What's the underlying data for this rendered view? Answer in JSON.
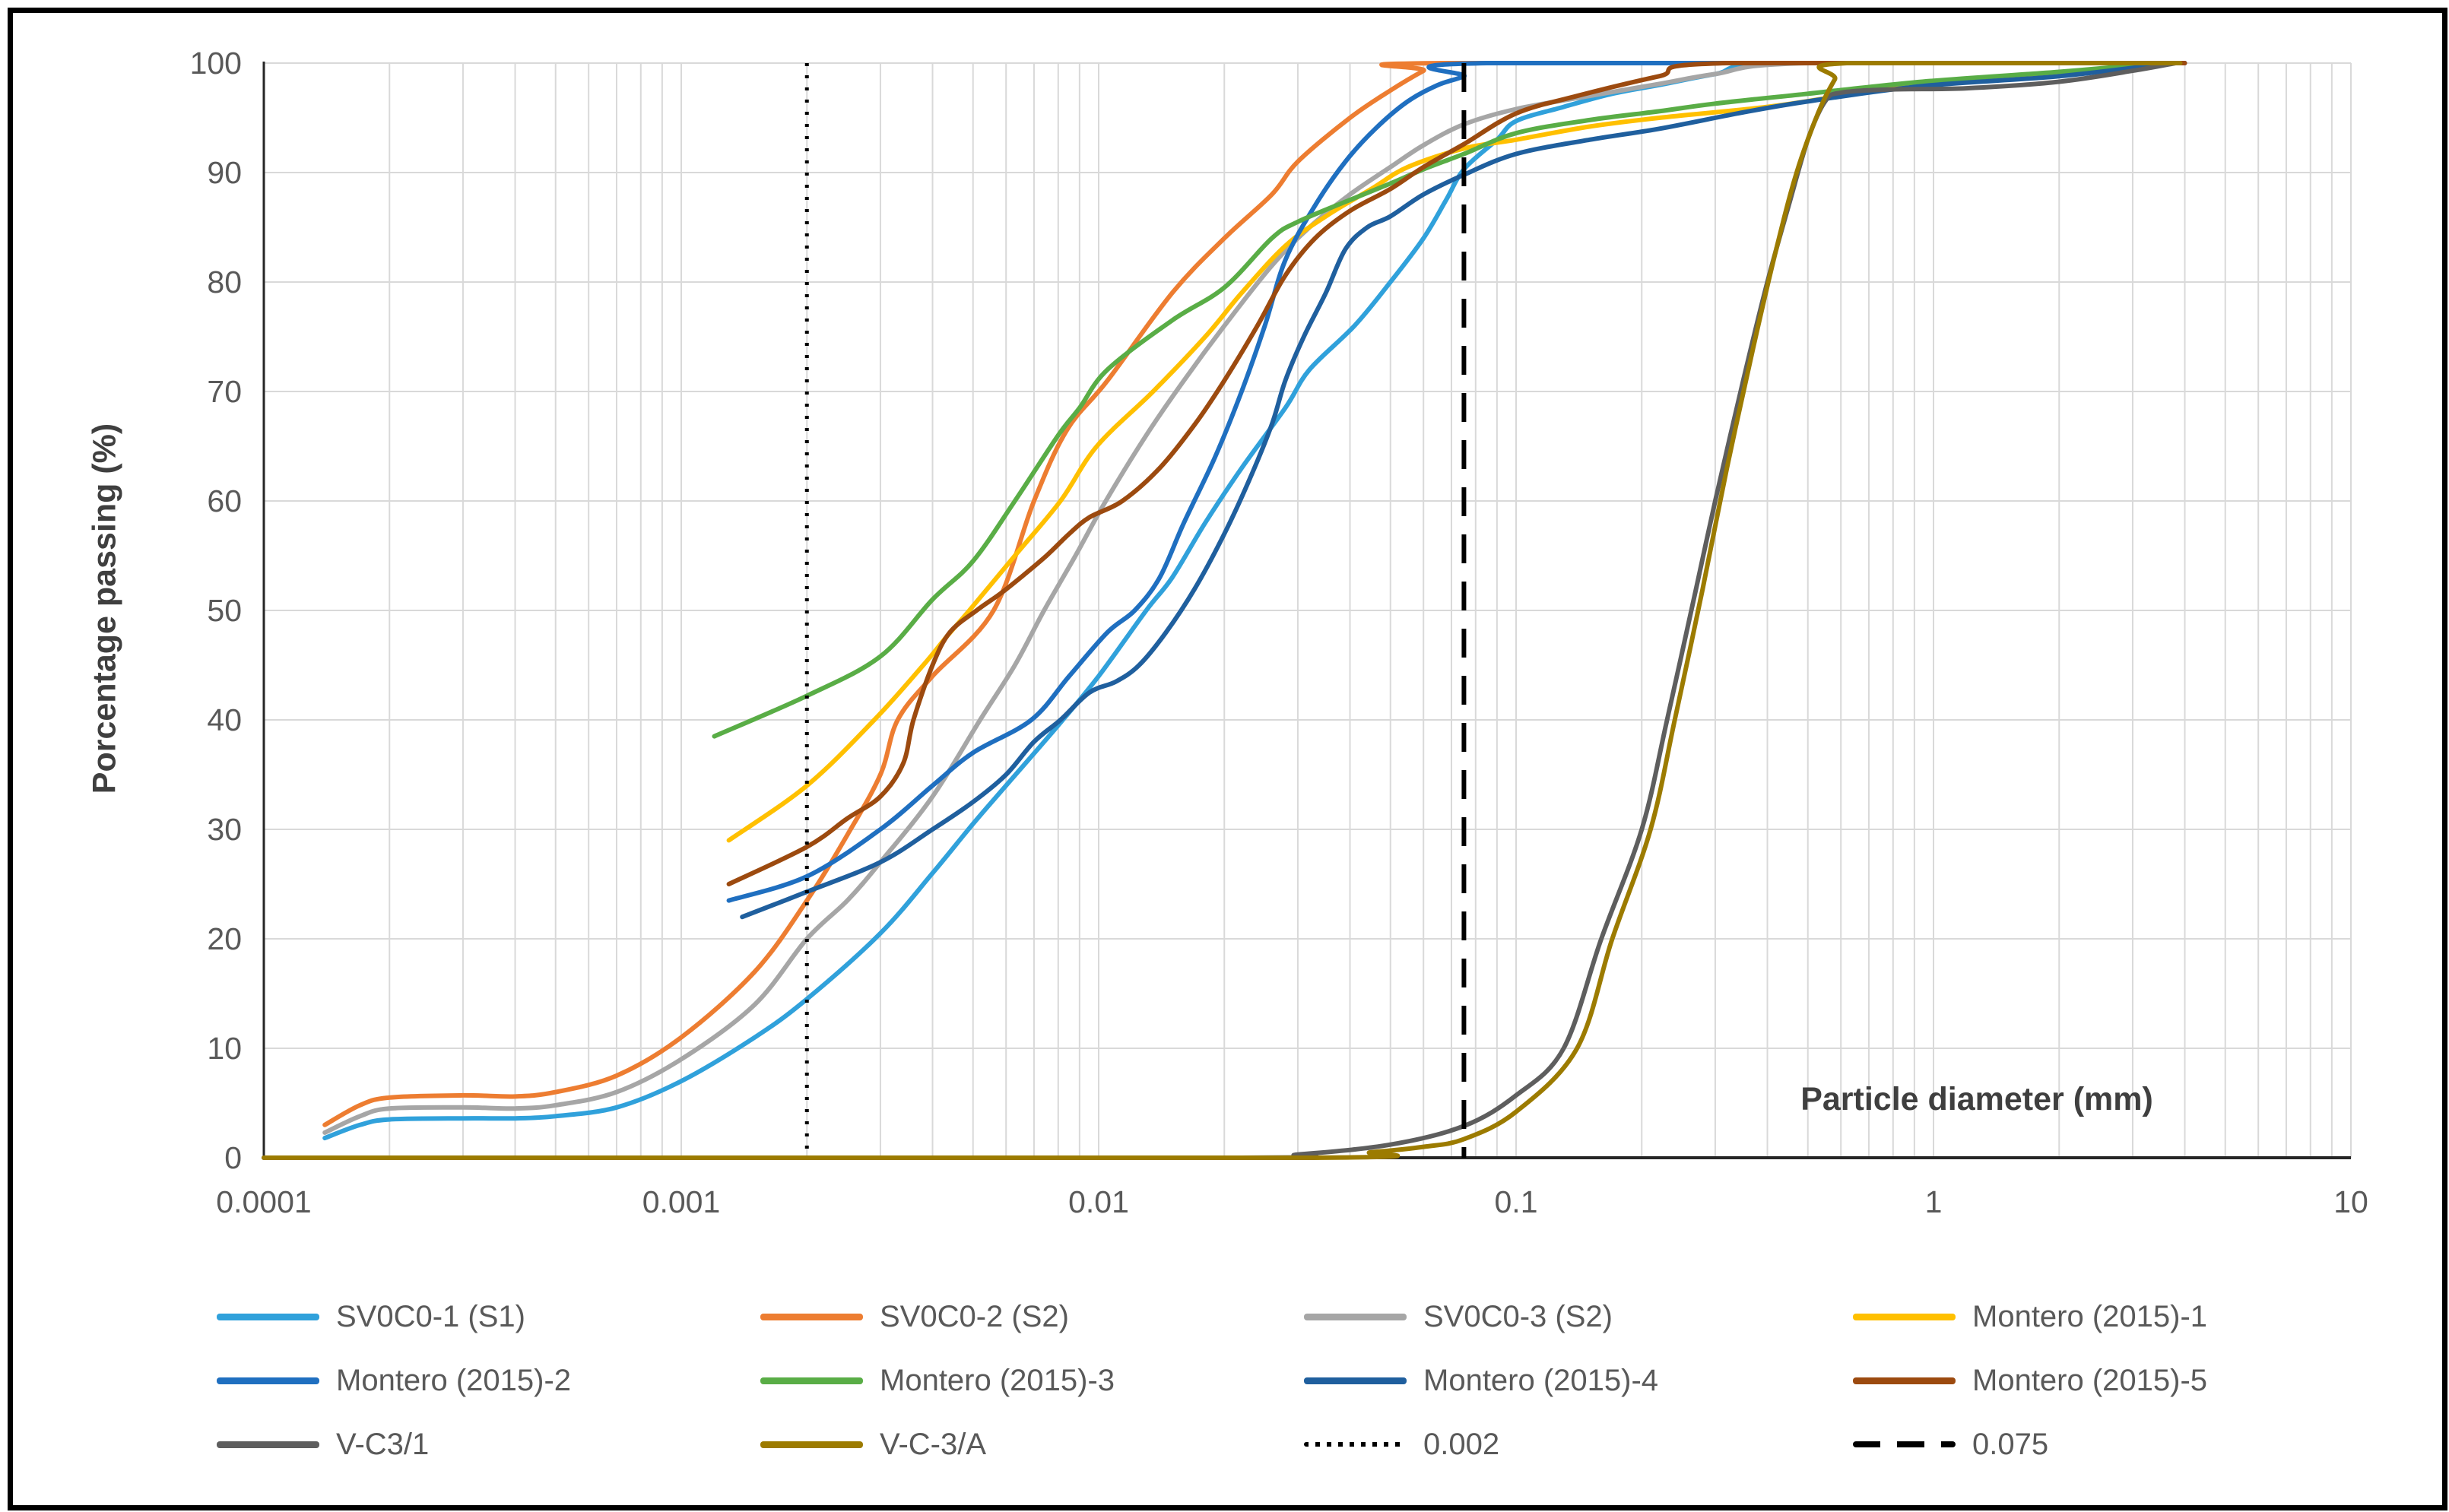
{
  "chart_data": {
    "type": "line",
    "title": "",
    "xlabel": "Particle diameter (mm)",
    "ylabel": "Porcentage passing (%)",
    "x_scale": "log",
    "xlim": [
      0.0001,
      10
    ],
    "ylim": [
      0,
      100
    ],
    "grid": true,
    "legend_position": "bottom",
    "x_ticks": [
      "0.0001",
      "0.001",
      "0.01",
      "0.1",
      "1",
      "10"
    ],
    "y_ticks": [
      "0",
      "10",
      "20",
      "30",
      "40",
      "50",
      "60",
      "70",
      "80",
      "90",
      "100"
    ],
    "series": [
      {
        "name": "SV0C0-1 (S1)",
        "color": "#30A1DB",
        "dash": "solid",
        "points": [
          [
            0.00014,
            1.8
          ],
          [
            0.00017,
            3.0
          ],
          [
            0.0002,
            3.5
          ],
          [
            0.0003,
            3.6
          ],
          [
            0.0004,
            3.6
          ],
          [
            0.0005,
            3.8
          ],
          [
            0.0007,
            4.6
          ],
          [
            0.001,
            7.0
          ],
          [
            0.0015,
            11.0
          ],
          [
            0.002,
            14.5
          ],
          [
            0.003,
            20.5
          ],
          [
            0.004,
            26.0
          ],
          [
            0.005,
            30.5
          ],
          [
            0.006,
            34.0
          ],
          [
            0.008,
            39.5
          ],
          [
            0.01,
            44.0
          ],
          [
            0.013,
            50.0
          ],
          [
            0.015,
            53.0
          ],
          [
            0.018,
            58.0
          ],
          [
            0.022,
            63.0
          ],
          [
            0.028,
            68.5
          ],
          [
            0.032,
            72.0
          ],
          [
            0.041,
            76.0
          ],
          [
            0.05,
            80.0
          ],
          [
            0.06,
            84.0
          ],
          [
            0.068,
            87.5
          ],
          [
            0.075,
            90.3
          ],
          [
            0.09,
            93.0
          ],
          [
            0.1,
            94.7
          ],
          [
            0.13,
            96.0
          ],
          [
            0.17,
            97.2
          ],
          [
            0.22,
            98.0
          ],
          [
            0.3,
            99.0
          ],
          [
            0.45,
            100
          ],
          [
            4,
            100
          ]
        ]
      },
      {
        "name": "SV0C0-2 (S2)",
        "color": "#ED7D31",
        "dash": "solid",
        "points": [
          [
            0.00014,
            3.0
          ],
          [
            0.00017,
            4.8
          ],
          [
            0.0002,
            5.5
          ],
          [
            0.0003,
            5.7
          ],
          [
            0.0004,
            5.6
          ],
          [
            0.0005,
            6.0
          ],
          [
            0.0007,
            7.5
          ],
          [
            0.001,
            11.0
          ],
          [
            0.0015,
            17.0
          ],
          [
            0.002,
            23.5
          ],
          [
            0.0025,
            29.5
          ],
          [
            0.003,
            35.0
          ],
          [
            0.0033,
            40.0
          ],
          [
            0.004,
            44.0
          ],
          [
            0.0056,
            50.0
          ],
          [
            0.007,
            60.0
          ],
          [
            0.0084,
            66.5
          ],
          [
            0.0105,
            71.0
          ],
          [
            0.015,
            79.0
          ],
          [
            0.02,
            84.0
          ],
          [
            0.026,
            88.0
          ],
          [
            0.03,
            91.0
          ],
          [
            0.04,
            95.0
          ],
          [
            0.05,
            97.5
          ],
          [
            0.06,
            99.3
          ],
          [
            0.066,
            100
          ],
          [
            4,
            100
          ]
        ]
      },
      {
        "name": "SV0C0-3 (S2)",
        "color": "#A6A6A6",
        "dash": "solid",
        "points": [
          [
            0.00014,
            2.3
          ],
          [
            0.00017,
            3.8
          ],
          [
            0.0002,
            4.5
          ],
          [
            0.0003,
            4.6
          ],
          [
            0.0004,
            4.5
          ],
          [
            0.0005,
            4.8
          ],
          [
            0.0007,
            6.0
          ],
          [
            0.001,
            9.0
          ],
          [
            0.0015,
            14.0
          ],
          [
            0.002,
            20.0
          ],
          [
            0.0025,
            23.5
          ],
          [
            0.003,
            27.0
          ],
          [
            0.004,
            33.0
          ],
          [
            0.0052,
            40.0
          ],
          [
            0.0063,
            45.0
          ],
          [
            0.0074,
            50.0
          ],
          [
            0.0088,
            55.0
          ],
          [
            0.0104,
            60.0
          ],
          [
            0.013,
            66.0
          ],
          [
            0.016,
            71.0
          ],
          [
            0.02,
            76.0
          ],
          [
            0.026,
            81.5
          ],
          [
            0.032,
            85.0
          ],
          [
            0.04,
            88.0
          ],
          [
            0.05,
            90.5
          ],
          [
            0.06,
            92.5
          ],
          [
            0.075,
            94.4
          ],
          [
            0.1,
            95.8
          ],
          [
            0.15,
            97.0
          ],
          [
            0.22,
            98.1
          ],
          [
            0.3,
            99.0
          ],
          [
            0.5,
            100
          ],
          [
            4,
            100
          ]
        ]
      },
      {
        "name": "Montero (2015)-1",
        "color": "#FFC000",
        "dash": "solid",
        "points": [
          [
            0.0013,
            29.0
          ],
          [
            0.002,
            34.0
          ],
          [
            0.0029,
            40.0
          ],
          [
            0.0038,
            45.0
          ],
          [
            0.0043,
            47.5
          ],
          [
            0.0049,
            50.0
          ],
          [
            0.0063,
            55.0
          ],
          [
            0.0081,
            60.0
          ],
          [
            0.0099,
            65.0
          ],
          [
            0.0135,
            70.0
          ],
          [
            0.018,
            75.0
          ],
          [
            0.022,
            79.0
          ],
          [
            0.028,
            83.3
          ],
          [
            0.035,
            86.0
          ],
          [
            0.045,
            88.5
          ],
          [
            0.055,
            90.5
          ],
          [
            0.075,
            92.2
          ],
          [
            0.1,
            93.0
          ],
          [
            0.15,
            94.2
          ],
          [
            0.22,
            95.0
          ],
          [
            0.4,
            96.0
          ],
          [
            0.6,
            97.0
          ],
          [
            0.94,
            98.1
          ],
          [
            2,
            99.0
          ],
          [
            3.6,
            100
          ]
        ]
      },
      {
        "name": "Montero (2015)-2",
        "color": "#1F6FC0",
        "dash": "solid",
        "points": [
          [
            0.0013,
            23.5
          ],
          [
            0.002,
            25.7
          ],
          [
            0.003,
            30.0
          ],
          [
            0.004,
            34.0
          ],
          [
            0.005,
            37.0
          ],
          [
            0.0069,
            40.0
          ],
          [
            0.0085,
            44.0
          ],
          [
            0.0105,
            48.0
          ],
          [
            0.0122,
            50.0
          ],
          [
            0.014,
            53.0
          ],
          [
            0.016,
            58.0
          ],
          [
            0.019,
            64.0
          ],
          [
            0.022,
            70.0
          ],
          [
            0.025,
            76.0
          ],
          [
            0.028,
            82.0
          ],
          [
            0.033,
            87.0
          ],
          [
            0.039,
            91.0
          ],
          [
            0.046,
            94.0
          ],
          [
            0.055,
            96.5
          ],
          [
            0.065,
            98.0
          ],
          [
            0.075,
            98.8
          ],
          [
            0.085,
            100
          ],
          [
            4,
            100
          ]
        ]
      },
      {
        "name": "Montero (2015)-3",
        "color": "#59AD46",
        "dash": "solid",
        "points": [
          [
            0.0012,
            38.5
          ],
          [
            0.002,
            42.2
          ],
          [
            0.003,
            45.8
          ],
          [
            0.004,
            51.0
          ],
          [
            0.005,
            54.5
          ],
          [
            0.0063,
            60.0
          ],
          [
            0.008,
            66.0
          ],
          [
            0.009,
            68.5
          ],
          [
            0.0105,
            72.0
          ],
          [
            0.015,
            76.5
          ],
          [
            0.02,
            79.5
          ],
          [
            0.026,
            84.0
          ],
          [
            0.03,
            85.5
          ],
          [
            0.04,
            87.5
          ],
          [
            0.05,
            89.0
          ],
          [
            0.06,
            90.3
          ],
          [
            0.075,
            91.7
          ],
          [
            0.1,
            93.6
          ],
          [
            0.15,
            94.8
          ],
          [
            0.22,
            95.6
          ],
          [
            0.3,
            96.3
          ],
          [
            0.5,
            97.2
          ],
          [
            0.94,
            98.3
          ],
          [
            2,
            99.2
          ],
          [
            3.5,
            100
          ]
        ]
      },
      {
        "name": "Montero (2015)-4",
        "color": "#1F5F9E",
        "dash": "solid",
        "points": [
          [
            0.0014,
            22.0
          ],
          [
            0.002,
            24.3
          ],
          [
            0.003,
            27.0
          ],
          [
            0.004,
            30.0
          ],
          [
            0.005,
            32.5
          ],
          [
            0.006,
            35.0
          ],
          [
            0.007,
            38.0
          ],
          [
            0.0081,
            40.0
          ],
          [
            0.0095,
            42.5
          ],
          [
            0.011,
            43.5
          ],
          [
            0.0125,
            45.0
          ],
          [
            0.0145,
            48.0
          ],
          [
            0.017,
            52.0
          ],
          [
            0.02,
            57.0
          ],
          [
            0.023,
            62.0
          ],
          [
            0.026,
            67.0
          ],
          [
            0.028,
            71.0
          ],
          [
            0.031,
            75.0
          ],
          [
            0.035,
            79.0
          ],
          [
            0.039,
            83.0
          ],
          [
            0.044,
            85.0
          ],
          [
            0.05,
            86.0
          ],
          [
            0.06,
            88.0
          ],
          [
            0.075,
            89.8
          ],
          [
            0.1,
            91.7
          ],
          [
            0.15,
            93.0
          ],
          [
            0.22,
            94.0
          ],
          [
            0.35,
            95.5
          ],
          [
            0.5,
            96.5
          ],
          [
            0.94,
            97.9
          ],
          [
            2,
            98.8
          ],
          [
            3.7,
            100
          ]
        ]
      },
      {
        "name": "Montero (2015)-5",
        "color": "#9C4A0F",
        "dash": "solid",
        "points": [
          [
            0.0013,
            25.0
          ],
          [
            0.002,
            28.4
          ],
          [
            0.0025,
            31.0
          ],
          [
            0.003,
            33.0
          ],
          [
            0.0034,
            36.0
          ],
          [
            0.0036,
            40.0
          ],
          [
            0.004,
            45.0
          ],
          [
            0.0044,
            48.0
          ],
          [
            0.0051,
            50.0
          ],
          [
            0.0058,
            51.5
          ],
          [
            0.0065,
            53.0
          ],
          [
            0.0075,
            55.0
          ],
          [
            0.0085,
            57.0
          ],
          [
            0.0095,
            58.5
          ],
          [
            0.0114,
            60.0
          ],
          [
            0.014,
            63.0
          ],
          [
            0.017,
            67.0
          ],
          [
            0.02,
            71.0
          ],
          [
            0.024,
            76.0
          ],
          [
            0.028,
            80.6
          ],
          [
            0.033,
            84.0
          ],
          [
            0.04,
            86.5
          ],
          [
            0.05,
            88.5
          ],
          [
            0.06,
            90.5
          ],
          [
            0.075,
            92.6
          ],
          [
            0.1,
            95.4
          ],
          [
            0.14,
            97.0
          ],
          [
            0.22,
            98.8
          ],
          [
            0.32,
            100
          ],
          [
            4,
            100
          ]
        ]
      },
      {
        "name": "V-C3/1",
        "color": "#5E5E5E",
        "dash": "solid",
        "points": [
          [
            0.0001,
            0
          ],
          [
            0.02,
            0
          ],
          [
            0.03,
            0.3
          ],
          [
            0.05,
            1.2
          ],
          [
            0.075,
            2.9
          ],
          [
            0.1,
            5.7
          ],
          [
            0.13,
            10.0
          ],
          [
            0.16,
            20.0
          ],
          [
            0.2,
            30.0
          ],
          [
            0.23,
            40.0
          ],
          [
            0.27,
            52.0
          ],
          [
            0.3,
            60.0
          ],
          [
            0.35,
            71.0
          ],
          [
            0.4,
            80.0
          ],
          [
            0.45,
            87.0
          ],
          [
            0.5,
            93.0
          ],
          [
            0.55,
            96.5
          ],
          [
            0.6,
            97.3
          ],
          [
            0.8,
            97.6
          ],
          [
            1.2,
            97.7
          ],
          [
            2,
            98.3
          ],
          [
            3,
            99.3
          ],
          [
            3.8,
            100
          ]
        ]
      },
      {
        "name": "V-C-3/A",
        "color": "#9C7B00",
        "dash": "solid",
        "points": [
          [
            0.0001,
            0
          ],
          [
            0.03,
            0
          ],
          [
            0.045,
            0.5
          ],
          [
            0.06,
            1.0
          ],
          [
            0.075,
            1.7
          ],
          [
            0.1,
            4.2
          ],
          [
            0.14,
            10.0
          ],
          [
            0.17,
            20.0
          ],
          [
            0.21,
            30.0
          ],
          [
            0.24,
            40.0
          ],
          [
            0.28,
            52.0
          ],
          [
            0.32,
            63.0
          ],
          [
            0.37,
            74.0
          ],
          [
            0.42,
            83.0
          ],
          [
            0.47,
            90.0
          ],
          [
            0.53,
            95.5
          ],
          [
            0.58,
            98.5
          ],
          [
            0.62,
            100
          ],
          [
            3.9,
            100
          ]
        ]
      }
    ],
    "reference_lines": [
      {
        "name": "0.002",
        "x": 0.002,
        "style": "dotted",
        "color": "#000000"
      },
      {
        "name": "0.075",
        "x": 0.075,
        "style": "dashed",
        "color": "#000000"
      }
    ]
  },
  "colors": {
    "gridline": "#D9D9D9",
    "axis_line": "#262626",
    "tick_text": "#595959",
    "title_text": "#3F3F3F",
    "background": "#FFFFFF",
    "border": "#000000"
  }
}
